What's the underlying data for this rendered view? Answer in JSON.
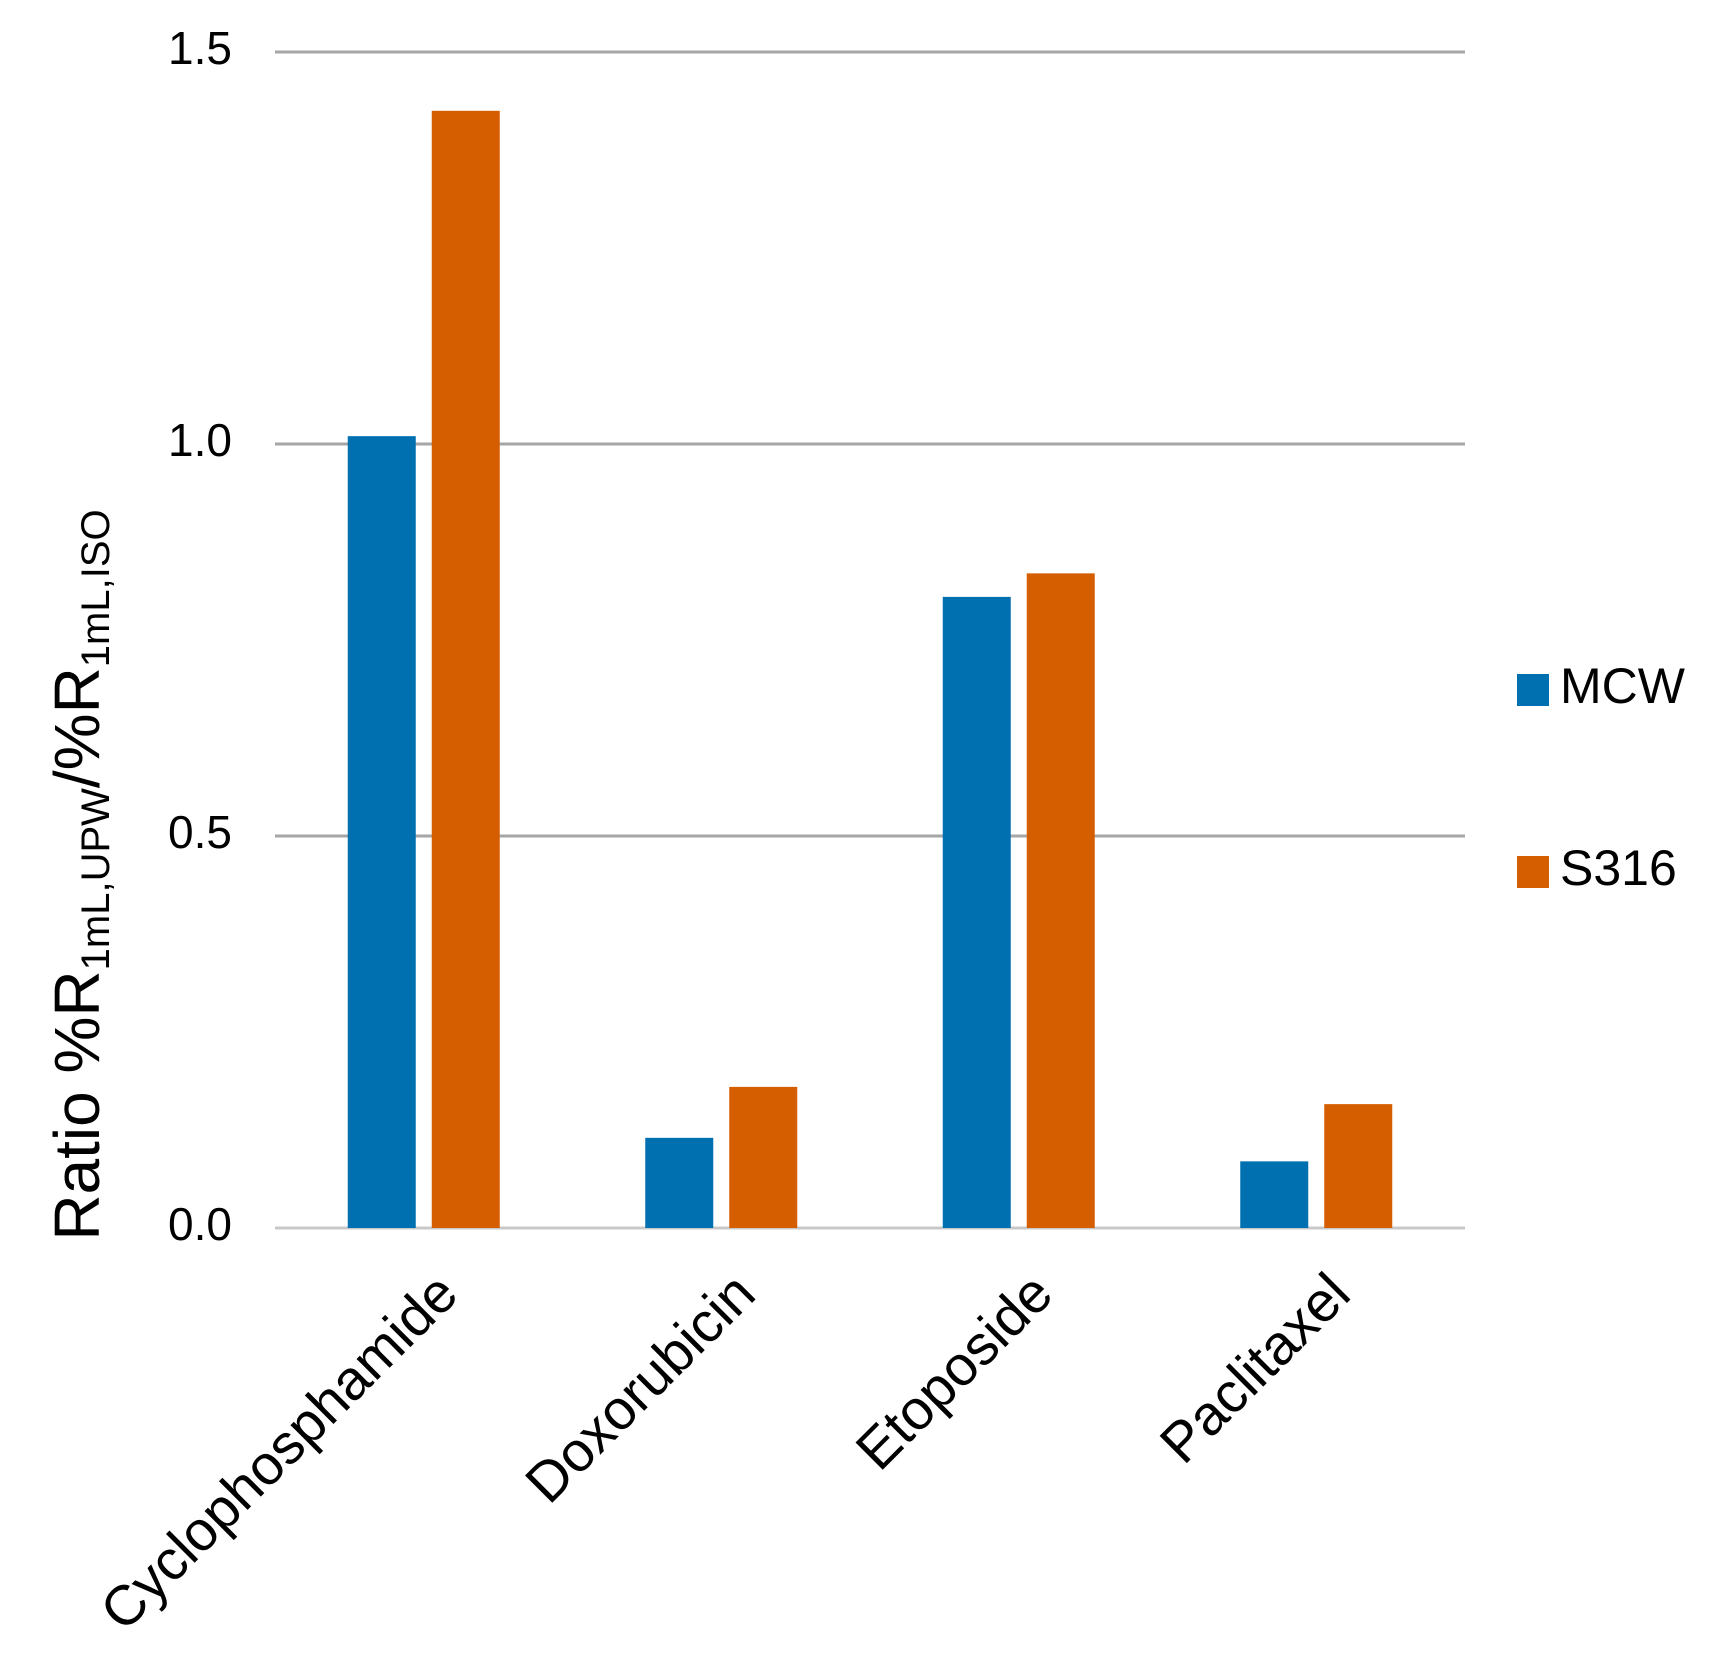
{
  "chart_data": {
    "type": "bar",
    "title": "",
    "categories": [
      "Cyclophosphamide",
      "Doxorubicin",
      "Etoposide",
      "Paclitaxel"
    ],
    "series": [
      {
        "name": "MCW",
        "color": "#0070b0",
        "values": [
          1.01,
          0.115,
          0.805,
          0.085
        ]
      },
      {
        "name": "S316",
        "color": "#d55e00",
        "values": [
          1.425,
          0.18,
          0.835,
          0.158
        ]
      }
    ],
    "xlabel": "",
    "ylabel": {
      "prefix": "Ratio %R",
      "sub1": "1mL,UPW",
      "middle": "/%R",
      "sub2": "1mL,ISO"
    },
    "ylim": [
      0,
      1.5
    ],
    "yticks": [
      "0.0",
      "0.5",
      "1.0",
      "1.5"
    ],
    "ytick_values": [
      0,
      0.5,
      1.0,
      1.5
    ],
    "grid": true,
    "gridline_color": "#a6a6a6",
    "legend_position": "right"
  }
}
